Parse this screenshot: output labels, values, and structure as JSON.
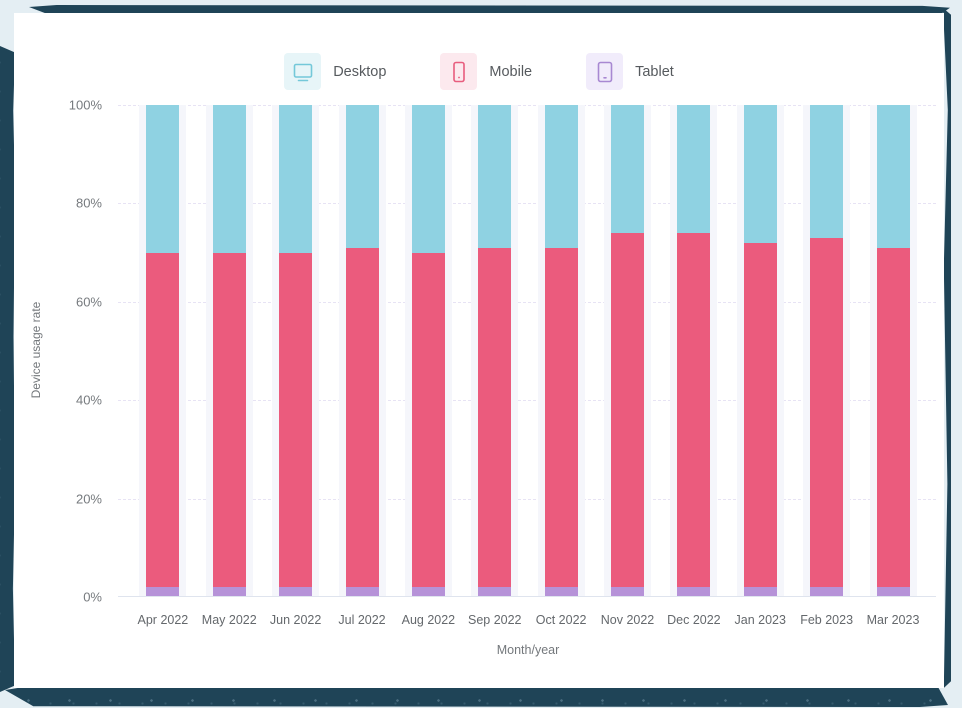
{
  "frame": {
    "outer_bg": "#e4eef3",
    "border_color": "#1f4457",
    "panel_bg": "#ffffff"
  },
  "legend": {
    "items": [
      {
        "label": "Desktop",
        "icon": "desktop-icon",
        "swatch_bg": "#e7f5f8",
        "icon_stroke": "#74c8d9"
      },
      {
        "label": "Mobile",
        "icon": "mobile-icon",
        "swatch_bg": "#fce9ee",
        "icon_stroke": "#e85d7e"
      },
      {
        "label": "Tablet",
        "icon": "tablet-icon",
        "swatch_bg": "#f1ecfb",
        "icon_stroke": "#a888d2"
      }
    ]
  },
  "chart_data": {
    "type": "bar",
    "stacked": true,
    "title": "",
    "xlabel": "Month/year",
    "ylabel": "Device usage rate",
    "ylim": [
      0,
      100
    ],
    "yticks": [
      {
        "value": 0,
        "label": "0%"
      },
      {
        "value": 20,
        "label": "20%"
      },
      {
        "value": 40,
        "label": "40%"
      },
      {
        "value": 60,
        "label": "60%"
      },
      {
        "value": 80,
        "label": "80%"
      },
      {
        "value": 100,
        "label": "100%"
      }
    ],
    "grid": "horizontal-dashed",
    "legend_position": "top",
    "categories": [
      "Apr 2022",
      "May 2022",
      "Jun 2022",
      "Jul 2022",
      "Aug 2022",
      "Sep 2022",
      "Oct 2022",
      "Nov 2022",
      "Dec 2022",
      "Jan 2023",
      "Feb 2023",
      "Mar 2023"
    ],
    "series": [
      {
        "name": "Desktop",
        "color": "#8fd2e2",
        "values": [
          30,
          30,
          30,
          29,
          30,
          29,
          29,
          26,
          26,
          28,
          27,
          29
        ]
      },
      {
        "name": "Mobile",
        "color": "#eb5b7d",
        "values": [
          68,
          68,
          68,
          69,
          68,
          69,
          69,
          72,
          72,
          70,
          71,
          69
        ]
      },
      {
        "name": "Tablet",
        "color": "#b692d8",
        "values": [
          2,
          2,
          2,
          2,
          2,
          2,
          2,
          2,
          2,
          2,
          2,
          2
        ]
      }
    ],
    "band_bg": "#f5f6fb"
  }
}
